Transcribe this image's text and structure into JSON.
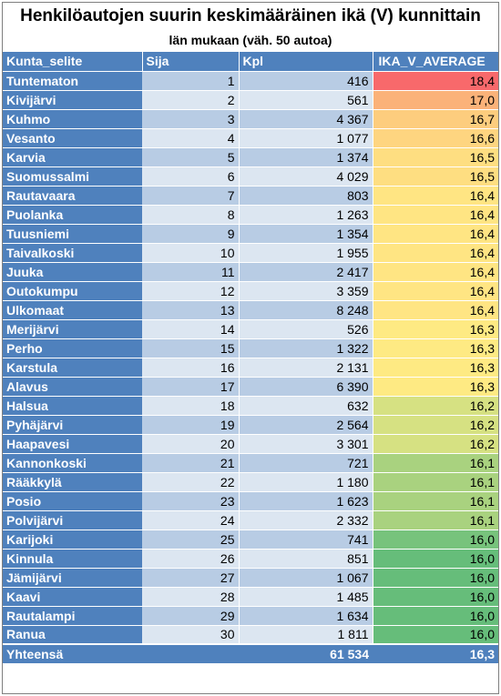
{
  "title": "Henkilöautojen suurin keskimääräinen ikä (V) kunnittain",
  "subtitle": "län mukaan (väh. 50 autoa)",
  "headers": [
    "Kunta_selite",
    "Sija",
    "Kpl",
    "IKA_V_AVERAGE"
  ],
  "rows": [
    {
      "name": "Tuntematon",
      "rank": "1",
      "count": "416",
      "avg": "18,4",
      "color": "#f8696b"
    },
    {
      "name": "Kivijärvi",
      "rank": "2",
      "count": "561",
      "avg": "17,0",
      "color": "#fbb279"
    },
    {
      "name": "Kuhmo",
      "rank": "3",
      "count": "4 367",
      "avg": "16,7",
      "color": "#fdcd7e"
    },
    {
      "name": "Vesanto",
      "rank": "4",
      "count": "1 077",
      "avg": "16,6",
      "color": "#fed580"
    },
    {
      "name": "Karvia",
      "rank": "5",
      "count": "1 374",
      "avg": "16,5",
      "color": "#fede81"
    },
    {
      "name": "Suomussalmi",
      "rank": "6",
      "count": "4 029",
      "avg": "16,5",
      "color": "#fede81"
    },
    {
      "name": "Rautavaara",
      "rank": "7",
      "count": "803",
      "avg": "16,4",
      "color": "#ffe583"
    },
    {
      "name": "Puolanka",
      "rank": "8",
      "count": "1 263",
      "avg": "16,4",
      "color": "#ffe583"
    },
    {
      "name": "Tuusniemi",
      "rank": "9",
      "count": "1 354",
      "avg": "16,4",
      "color": "#ffe583"
    },
    {
      "name": "Taivalkoski",
      "rank": "10",
      "count": "1 955",
      "avg": "16,4",
      "color": "#ffe583"
    },
    {
      "name": "Juuka",
      "rank": "11",
      "count": "2 417",
      "avg": "16,4",
      "color": "#ffe583"
    },
    {
      "name": "Outokumpu",
      "rank": "12",
      "count": "3 359",
      "avg": "16,4",
      "color": "#ffe583"
    },
    {
      "name": "Ulkomaat",
      "rank": "13",
      "count": "8 248",
      "avg": "16,4",
      "color": "#ffe583"
    },
    {
      "name": "Merijärvi",
      "rank": "14",
      "count": "526",
      "avg": "16,3",
      "color": "#feea83"
    },
    {
      "name": "Perho",
      "rank": "15",
      "count": "1 322",
      "avg": "16,3",
      "color": "#feea83"
    },
    {
      "name": "Karstula",
      "rank": "16",
      "count": "2 131",
      "avg": "16,3",
      "color": "#feea83"
    },
    {
      "name": "Alavus",
      "rank": "17",
      "count": "6 390",
      "avg": "16,3",
      "color": "#feea83"
    },
    {
      "name": "Halsua",
      "rank": "18",
      "count": "632",
      "avg": "16,2",
      "color": "#d6e182"
    },
    {
      "name": "Pyhäjärvi",
      "rank": "19",
      "count": "2 564",
      "avg": "16,2",
      "color": "#d6e182"
    },
    {
      "name": "Haapavesi",
      "rank": "20",
      "count": "3 301",
      "avg": "16,2",
      "color": "#d6e182"
    },
    {
      "name": "Kannonkoski",
      "rank": "21",
      "count": "721",
      "avg": "16,1",
      "color": "#a9d27f"
    },
    {
      "name": "Rääkkylä",
      "rank": "22",
      "count": "1 180",
      "avg": "16,1",
      "color": "#a9d27f"
    },
    {
      "name": "Posio",
      "rank": "23",
      "count": "1 623",
      "avg": "16,1",
      "color": "#a9d27f"
    },
    {
      "name": "Polvijärvi",
      "rank": "24",
      "count": "2 332",
      "avg": "16,1",
      "color": "#a9d27f"
    },
    {
      "name": "Karijoki",
      "rank": "25",
      "count": "741",
      "avg": "16,0",
      "color": "#77c37c"
    },
    {
      "name": "Kinnula",
      "rank": "26",
      "count": "851",
      "avg": "16,0",
      "color": "#66bd7a"
    },
    {
      "name": "Jämijärvi",
      "rank": "27",
      "count": "1 067",
      "avg": "16,0",
      "color": "#66bd7a"
    },
    {
      "name": "Kaavi",
      "rank": "28",
      "count": "1 485",
      "avg": "16,0",
      "color": "#66bd7a"
    },
    {
      "name": "Rautalampi",
      "rank": "29",
      "count": "1 634",
      "avg": "16,0",
      "color": "#66bd7a"
    },
    {
      "name": "Ranua",
      "rank": "30",
      "count": "1 811",
      "avg": "16,0",
      "color": "#66bd7a"
    }
  ],
  "total": {
    "label": "Yhteensä",
    "rank": "",
    "count": "61 534",
    "avg": "16,3"
  }
}
